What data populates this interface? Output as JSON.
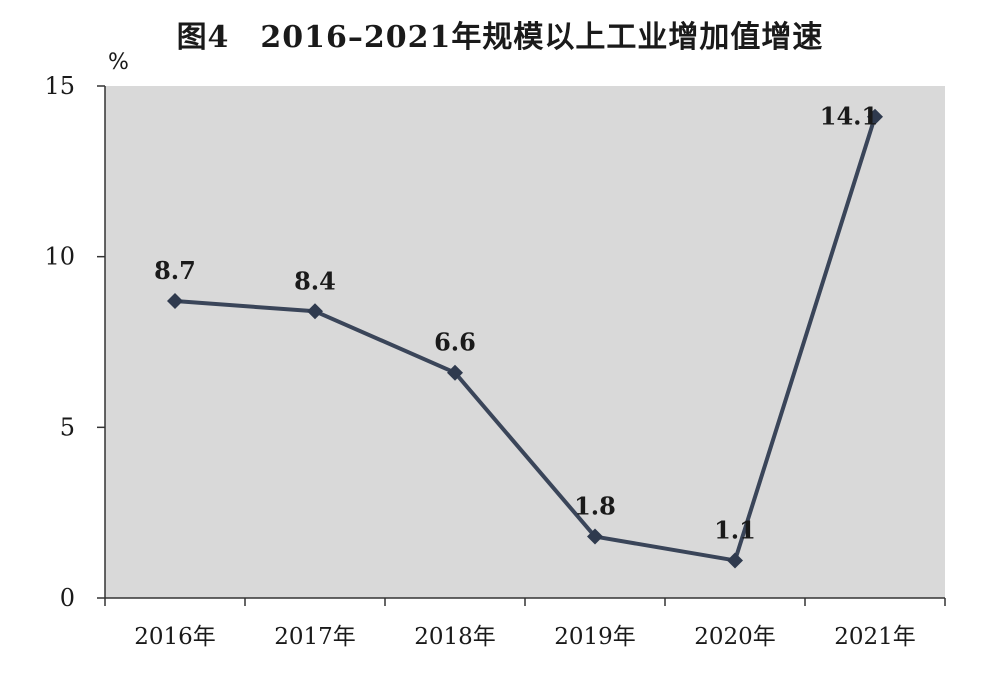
{
  "chart_data": {
    "type": "line",
    "title": "图4　2016–2021年规模以上工业增加值增速",
    "ylabel": "%",
    "xlabel": "",
    "categories": [
      "2016年",
      "2017年",
      "2018年",
      "2019年",
      "2020年",
      "2021年"
    ],
    "series": [
      {
        "values": [
          8.7,
          8.4,
          6.6,
          1.8,
          1.1,
          14.1
        ]
      }
    ],
    "data_labels": [
      "8.7",
      "8.4",
      "6.6",
      "1.8",
      "1.1",
      "14.1"
    ],
    "ylim": [
      0,
      15
    ],
    "yticks": [
      0,
      5,
      10,
      15
    ],
    "ytick_labels": [
      "0",
      "5",
      "10",
      "15"
    ],
    "grid": false,
    "legend": "none",
    "colors": {
      "plot_background": "#d9d9d9",
      "line": "#3a4559",
      "marker": "#2f3a4e",
      "axis": "#333333",
      "text": "#1a1a1a"
    }
  }
}
